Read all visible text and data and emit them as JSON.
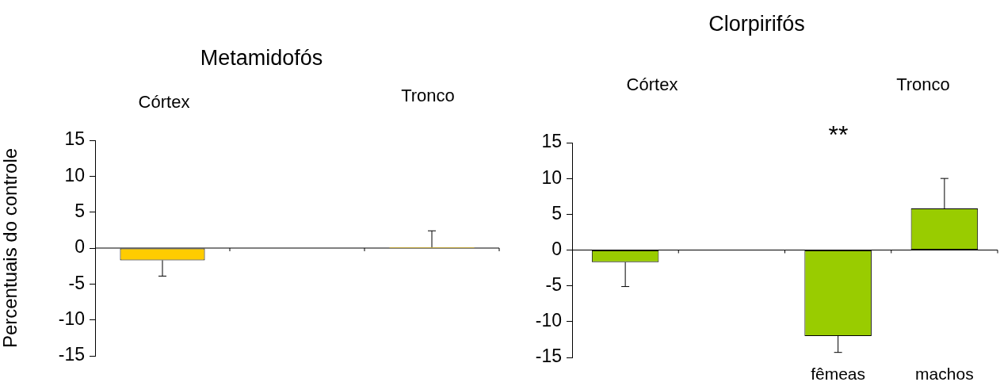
{
  "chart_data": [
    {
      "type": "bar",
      "title": "Metamidofós",
      "ylabel": "Percentuais do controle",
      "categories": [
        null,
        null,
        null
      ],
      "values": [
        -1.7,
        null,
        0.1
      ],
      "errors": [
        [
          -3.9,
          -1.7
        ],
        null,
        [
          0.1,
          2.4
        ]
      ],
      "color": "#ffcc00",
      "ylim": [
        -15,
        15
      ],
      "yticks": [
        -15,
        -10,
        -5,
        0,
        5,
        10,
        15
      ],
      "annotations": [
        "Córtex",
        "Tronco"
      ]
    },
    {
      "type": "bar",
      "title": "Clorpirifós",
      "categories": [
        null,
        null,
        "fêmeas",
        "machos"
      ],
      "values": [
        -1.7,
        null,
        -12.0,
        5.8
      ],
      "errors": [
        [
          -5.1,
          -1.7
        ],
        null,
        [
          -14.3,
          -12.0
        ],
        [
          5.8,
          10.0
        ]
      ],
      "color": "#99cc00",
      "ylim": [
        -15,
        15
      ],
      "yticks": [
        -15,
        -10,
        -5,
        0,
        5,
        10,
        15
      ],
      "annotations": [
        "Córtex",
        "Tronco",
        "**"
      ]
    }
  ]
}
